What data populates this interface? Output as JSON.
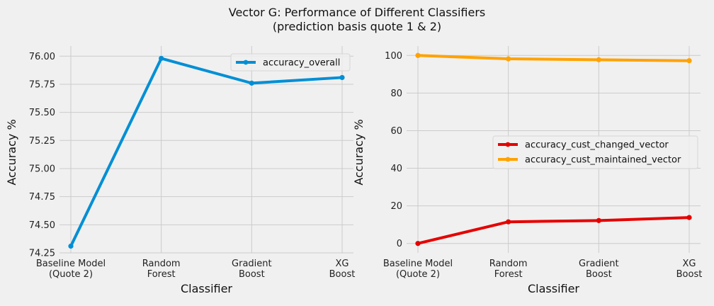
{
  "figure": {
    "title_line1": "Vector G: Performance of Different Classifiers",
    "title_line2": "(prediction basis quote 1 & 2)"
  },
  "chart_data": [
    {
      "type": "line",
      "categories": [
        [
          "Baseline Model",
          "(Quote 2)"
        ],
        [
          "Random",
          "Forest"
        ],
        [
          "Gradient",
          "Boost"
        ],
        [
          "XG",
          "Boost"
        ]
      ],
      "series": [
        {
          "name": "accuracy_overall",
          "values": [
            74.31,
            75.98,
            75.76,
            75.81
          ],
          "color": "#008fd5"
        }
      ],
      "xlabel": "Classifier",
      "ylabel": "Accuracy %",
      "ylim": [
        74.25,
        76.09
      ],
      "yticks": [
        "74.25",
        "74.50",
        "74.75",
        "75.00",
        "75.25",
        "75.50",
        "75.75",
        "76.00"
      ],
      "grid": true,
      "legend": "top-right"
    },
    {
      "type": "line",
      "categories": [
        [
          "Baseline Model",
          "(Quote 2)"
        ],
        [
          "Random",
          "Forest"
        ],
        [
          "Gradient",
          "Boost"
        ],
        [
          "XG",
          "Boost"
        ]
      ],
      "series": [
        {
          "name": "accuracy_cust_changed_vector",
          "values": [
            0.0,
            11.5,
            12.2,
            13.8
          ],
          "color": "#e50000"
        },
        {
          "name": "accuracy_cust_maintained_vector",
          "values": [
            100.0,
            98.2,
            97.7,
            97.2
          ],
          "color": "#ffa200"
        }
      ],
      "xlabel": "Classifier",
      "ylabel": "Accuracy %",
      "ylim": [
        -5,
        105
      ],
      "yticks": [
        "0",
        "20",
        "40",
        "60",
        "80",
        "100"
      ],
      "grid": true,
      "legend": "center-right"
    }
  ]
}
